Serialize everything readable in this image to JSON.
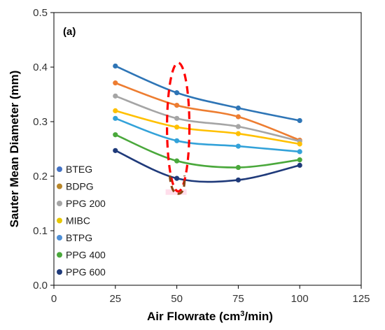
{
  "chart_data": {
    "type": "line",
    "panel_label": "(a)",
    "xlabel": "Air Flowrate (cm",
    "xlabel_sup": "3",
    "xlabel_end": "/min)",
    "ylabel": "Sauter Mean Diameter (mm)",
    "xlim": [
      0,
      125
    ],
    "ylim": [
      0,
      0.5
    ],
    "xticks": [
      0,
      25,
      50,
      75,
      100,
      125
    ],
    "xtick_labels": [
      "0",
      "25",
      "50",
      "75",
      "100",
      "125"
    ],
    "yticks": [
      0,
      0.1,
      0.2,
      0.3,
      0.4,
      0.5
    ],
    "ytick_labels": [
      "0.0",
      "0.1",
      "0.2",
      "0.3",
      "0.4",
      "0.5"
    ],
    "grid": false,
    "legend_position": "bottom-left",
    "x": [
      25,
      50,
      75,
      100
    ],
    "series": [
      {
        "name": "BTEG",
        "color": "#2e75b6",
        "values": [
          0.402,
          0.353,
          0.325,
          0.302
        ]
      },
      {
        "name": "BDPG",
        "color": "#ed7d31",
        "values": [
          0.371,
          0.33,
          0.309,
          0.266
        ]
      },
      {
        "name": "PPG 200",
        "color": "#a5a5a5",
        "values": [
          0.347,
          0.306,
          0.291,
          0.264
        ]
      },
      {
        "name": "MIBC",
        "color": "#ffc000",
        "values": [
          0.32,
          0.29,
          0.278,
          0.259
        ]
      },
      {
        "name": "BTPG",
        "color": "#33a2d9",
        "values": [
          0.306,
          0.265,
          0.255,
          0.245
        ]
      },
      {
        "name": "PPG 400",
        "color": "#4aa83b",
        "values": [
          0.276,
          0.228,
          0.216,
          0.23
        ]
      },
      {
        "name": "PPG 600",
        "color": "#1f3a7a",
        "values": [
          0.247,
          0.196,
          0.193,
          0.22
        ]
      }
    ],
    "legend_marker_colors": [
      "#4472c4",
      "#b8862a",
      "#a5a5a5",
      "#e6c700",
      "#4e8fd6",
      "#4aa83b",
      "#1f3a7a"
    ],
    "annotations": {
      "highlight_ellipse_color": "#ff0000",
      "bracket_color": "#8b4513",
      "highlight_x": 50
    }
  }
}
